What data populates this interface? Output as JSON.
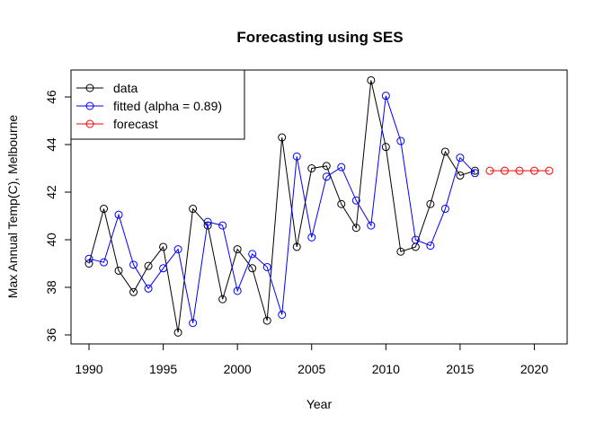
{
  "chart_data": {
    "type": "line",
    "title": "Forecasting using SES",
    "xlabel": "Year",
    "ylabel": "Max Annual Temp(C), Melbourne",
    "xlim": [
      1990,
      2021
    ],
    "ylim": [
      36,
      46.7
    ],
    "x_ticks": [
      "1990",
      "1995",
      "2000",
      "2005",
      "2010",
      "2015",
      "2020"
    ],
    "y_ticks": [
      "36",
      "38",
      "40",
      "42",
      "44",
      "46"
    ],
    "legend_position": "top-left",
    "series": [
      {
        "name": "data",
        "color": "#000000",
        "x": [
          1990,
          1991,
          1992,
          1993,
          1994,
          1995,
          1996,
          1997,
          1998,
          1999,
          2000,
          2001,
          2002,
          2003,
          2004,
          2005,
          2006,
          2007,
          2008,
          2009,
          2010,
          2011,
          2012,
          2013,
          2014,
          2015,
          2016
        ],
        "values": [
          39.0,
          41.3,
          38.7,
          37.8,
          38.9,
          39.7,
          36.1,
          41.3,
          40.6,
          37.5,
          39.6,
          38.8,
          36.6,
          44.3,
          39.7,
          43.0,
          43.1,
          41.5,
          40.5,
          46.7,
          43.9,
          39.5,
          39.7,
          41.5,
          43.7,
          42.7,
          42.9
        ]
      },
      {
        "name": "fitted (alpha = 0.89)",
        "color": "#0000ff",
        "x": [
          1990,
          1991,
          1992,
          1993,
          1994,
          1995,
          1996,
          1997,
          1998,
          1999,
          2000,
          2001,
          2002,
          2003,
          2004,
          2005,
          2006,
          2007,
          2008,
          2009,
          2010,
          2011,
          2012,
          2013,
          2014,
          2015,
          2016
        ],
        "values": [
          39.2,
          39.05,
          41.05,
          38.95,
          37.95,
          38.8,
          39.6,
          36.5,
          40.75,
          40.6,
          37.85,
          39.4,
          38.85,
          36.85,
          43.5,
          40.1,
          42.65,
          43.05,
          41.65,
          40.6,
          46.05,
          44.15,
          40.0,
          39.75,
          41.3,
          43.45,
          42.8
        ]
      },
      {
        "name": "forecast",
        "color": "#ff0000",
        "x": [
          2017,
          2018,
          2019,
          2020,
          2021
        ],
        "values": [
          42.9,
          42.9,
          42.9,
          42.9,
          42.9
        ]
      }
    ]
  }
}
